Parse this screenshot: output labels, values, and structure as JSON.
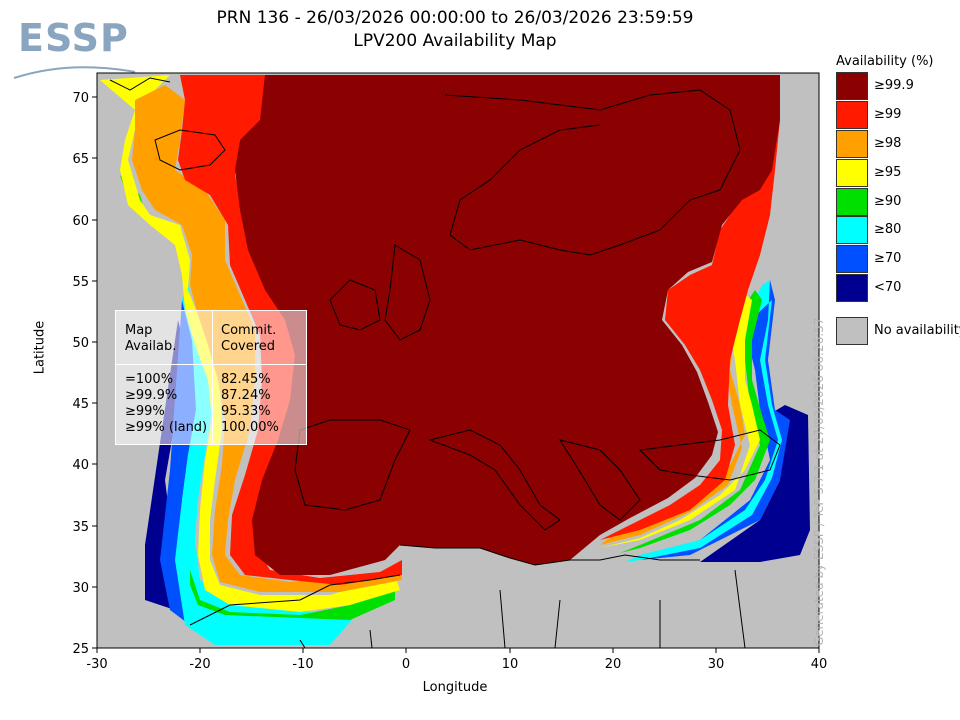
{
  "header": {
    "logo_text": "ESSP",
    "title_line1": "PRN 136 - 26/03/2026 00:00:00 to 26/03/2026 23:59:59",
    "title_line2": "LPV200 Availability Map"
  },
  "axes": {
    "x_label": "Longitude",
    "y_label": "Latitude",
    "x_ticks": [
      "-30",
      "-20",
      "-10",
      "0",
      "10",
      "20",
      "30",
      "40"
    ],
    "y_ticks": [
      "70",
      "65",
      "60",
      "55",
      "50",
      "45",
      "40",
      "35",
      "30",
      "25"
    ],
    "lon_range": [
      -30,
      40
    ],
    "lat_range": [
      25,
      72
    ]
  },
  "legend": {
    "title": "Availability (%)",
    "items": [
      {
        "label": "≥99.9",
        "color": "#8b0000"
      },
      {
        "label": "≥99",
        "color": "#ff1a00"
      },
      {
        "label": "≥98",
        "color": "#ffa000"
      },
      {
        "label": "≥95",
        "color": "#ffff00"
      },
      {
        "label": "≥90",
        "color": "#00e000"
      },
      {
        "label": "≥80",
        "color": "#00ffff"
      },
      {
        "label": "≥70",
        "color": "#0050ff"
      },
      {
        "label": "<70",
        "color": "#000090"
      }
    ],
    "no_availability": {
      "label": "No availability",
      "color": "#c0c0c0"
    }
  },
  "stats_table": {
    "col1_header": [
      "Map",
      "Availab."
    ],
    "col2_header": [
      "Commit.",
      "Covered"
    ],
    "rows": [
      {
        "level": "=100%",
        "covered": "82.45%"
      },
      {
        "level": "≥99.9%",
        "covered": "87.24%"
      },
      {
        "level": "≥99%",
        "covered": "95.33%"
      },
      {
        "level": "≥99% (land)",
        "covered": "100.00%"
      }
    ]
  },
  "credit": "Generated by ESSP / TeP 5.7.1 at 27/03/2026 06:26:57"
}
